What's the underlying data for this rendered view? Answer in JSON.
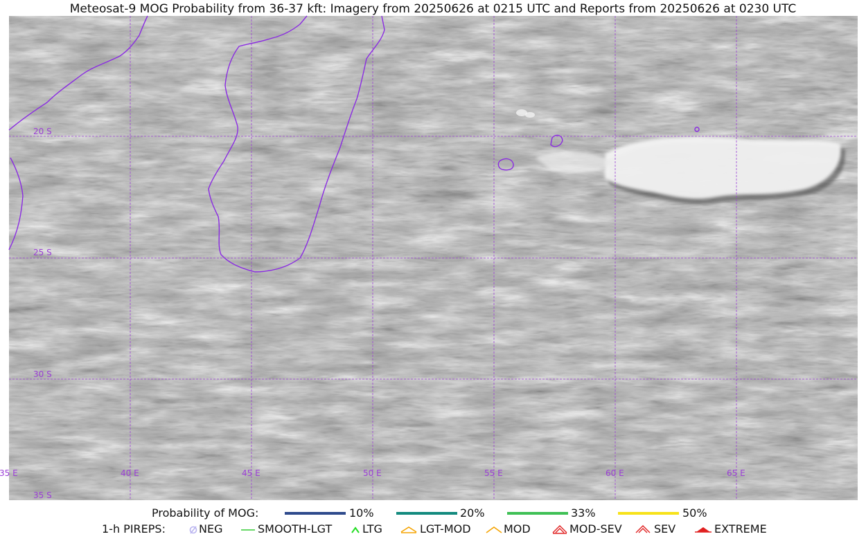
{
  "title": "Meteosat-9 MOG Probability from 36-37 kft: Imagery from 20250626 at 0215 UTC and Reports from 20250626 at 0230 UTC",
  "grid": {
    "color": "#9b3fd6",
    "lat_labels": [
      "20 S",
      "25 S",
      "30 S",
      "35 S"
    ],
    "lon_labels": [
      "35 E",
      "40 E",
      "45 E",
      "50 E",
      "55 E",
      "60 E",
      "65 E"
    ]
  },
  "coastline_color": "#8a2be2",
  "legend": {
    "probability_label": "Probability of MOG:",
    "probability_items": [
      {
        "label": "10%",
        "color": "#2e4a8c"
      },
      {
        "label": "20%",
        "color": "#138a7e"
      },
      {
        "label": "33%",
        "color": "#3fc055"
      },
      {
        "label": "50%",
        "color": "#f7e21a"
      }
    ],
    "pireps_label": "1-h PIREPS:",
    "pirep_items": [
      {
        "label": "NEG",
        "icon": "neg-icon",
        "color": "#b9b4f0"
      },
      {
        "label": "SMOOTH-LGT",
        "icon": "smooth-lgt-line-icon",
        "color": "#33cc33"
      },
      {
        "label": "LTG",
        "icon": "ltg-caret-icon",
        "color": "#22dd22"
      },
      {
        "label": "LGT-MOD",
        "icon": "lgt-mod-icon",
        "color": "#f5a300"
      },
      {
        "label": "MOD",
        "icon": "mod-icon",
        "color": "#f5a300"
      },
      {
        "label": "MOD-SEV",
        "icon": "mod-sev-icon",
        "color": "#e02020"
      },
      {
        "label": "SEV",
        "icon": "sev-icon",
        "color": "#e02020"
      },
      {
        "label": "EXTREME",
        "icon": "extreme-icon",
        "color": "#e02020"
      }
    ]
  }
}
